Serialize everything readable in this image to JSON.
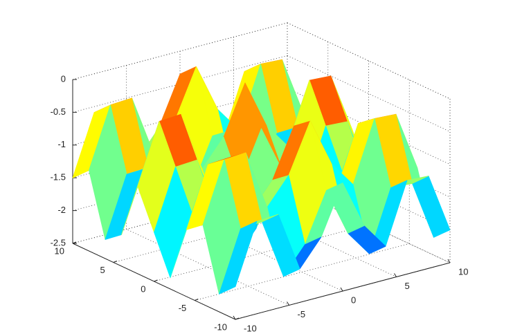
{
  "chart_data": {
    "type": "surface",
    "x": [
      -10,
      -8,
      -6,
      -4,
      -2,
      0,
      2,
      4,
      6,
      8,
      10
    ],
    "y": [
      -10,
      -8,
      -6,
      -4,
      -2,
      0,
      2,
      4,
      6,
      8,
      10
    ],
    "z": [
      [
        -2.0,
        -1.09,
        -1.07,
        -1.99,
        -1.59,
        -0.85,
        -1.59,
        -1.99,
        -1.07,
        -1.09,
        -2.0
      ],
      [
        -2.23,
        -1.32,
        -1.3,
        -2.22,
        -1.82,
        -1.08,
        -1.82,
        -2.22,
        -1.3,
        -1.32,
        -2.23
      ],
      [
        -1.29,
        -0.38,
        -0.36,
        -1.28,
        -0.88,
        -0.14,
        -0.88,
        -1.28,
        -0.36,
        -0.38,
        -1.29
      ],
      [
        -1.48,
        -0.57,
        -0.55,
        -1.47,
        -1.07,
        -0.33,
        -1.07,
        -1.47,
        -0.55,
        -0.57,
        -1.48
      ],
      [
        -2.33,
        -1.42,
        -1.4,
        -2.32,
        -1.92,
        -1.18,
        -1.92,
        -2.32,
        -1.4,
        -1.42,
        -2.33
      ],
      [
        -1.75,
        -0.84,
        -0.82,
        -1.74,
        -1.34,
        -0.6,
        -1.34,
        -1.74,
        -0.82,
        -0.84,
        -1.75
      ],
      [
        -1.17,
        -0.26,
        -0.24,
        -1.16,
        -0.76,
        -0.02,
        -0.76,
        -1.16,
        -0.24,
        -0.26,
        -1.17
      ],
      [
        -2.02,
        -1.11,
        -1.09,
        -2.01,
        -1.61,
        -0.87,
        -1.61,
        -2.01,
        -1.09,
        -1.11,
        -2.02
      ],
      [
        -2.21,
        -1.3,
        -1.28,
        -2.2,
        -1.8,
        -1.06,
        -1.8,
        -2.2,
        -1.28,
        -1.3,
        -2.21
      ],
      [
        -1.27,
        -0.36,
        -0.34,
        -1.26,
        -0.86,
        -0.12,
        -0.86,
        -1.26,
        -0.34,
        -0.36,
        -1.27
      ],
      [
        -1.5,
        -0.59,
        -0.57,
        -1.49,
        -1.09,
        -0.35,
        -1.09,
        -1.49,
        -0.57,
        -0.59,
        -1.5
      ]
    ],
    "xlim": [
      -10,
      10
    ],
    "ylim": [
      -10,
      10
    ],
    "zlim": [
      -2.5,
      0
    ],
    "xticks": [
      -10,
      -5,
      0,
      5,
      10
    ],
    "yticks": [
      -10,
      -5,
      0,
      5,
      10
    ],
    "zticks": [
      -2.5,
      -2,
      -1.5,
      -1,
      -0.5,
      0
    ],
    "grid": true,
    "colormap": "jet"
  }
}
